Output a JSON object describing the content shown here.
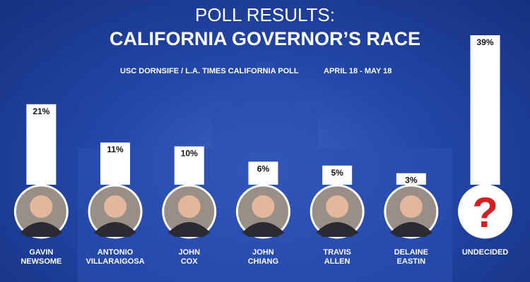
{
  "chart_data": {
    "type": "bar",
    "title": "POLL RESULTS:",
    "subtitle": "CALIFORNIA GOVERNOR’S RACE",
    "source": "USC DORNSIFE / L.A. TIMES CALIFORNIA POLL",
    "date_range": "APRIL 18 - MAY 18",
    "categories": [
      "GAVIN\nNEWSOME",
      "ANTONIO\nVILLARAIGOSA",
      "JOHN\nCOX",
      "JOHN\nCHIANG",
      "TRAVIS\nALLEN",
      "DELAINE\nEASTIN",
      "UNDECIDED"
    ],
    "values": [
      21,
      11,
      10,
      6,
      5,
      3,
      39
    ],
    "value_labels": [
      "21%",
      "11%",
      "10%",
      "6%",
      "5%",
      "3%",
      "39%"
    ],
    "undecided_icon": "?",
    "color": "#ffffff"
  }
}
